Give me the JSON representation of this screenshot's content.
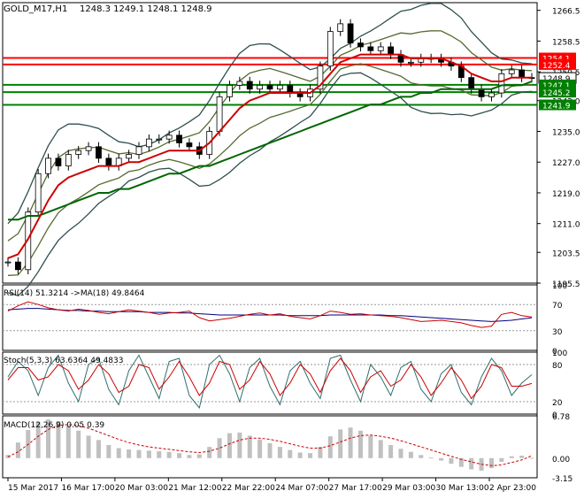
{
  "header": {
    "symbol_tf": "GOLD_M17,H1",
    "ohlc": "1248.3 1249.1 1248.1 1248.9"
  },
  "colors": {
    "background": "#ffffff",
    "frame": "#000000",
    "ma_fast": "#cc0000",
    "ma_slow": "#006600",
    "bands_outer": "#2f4f4f",
    "bands_inner": "#556b2f",
    "rsi": "#cc0000",
    "rsi_ma": "#000080",
    "stoch_main": "#2f6f6f",
    "stoch_signal": "#cc0000",
    "macd_hist": "#c0c0c0",
    "macd_signal": "#cc0000",
    "level_red": "#ff0000",
    "level_green": "#008000"
  },
  "chart_data": [
    {
      "type": "candlestick",
      "title": "GOLD_M17,H1",
      "ylim": [
        1195.5,
        1268.5
      ],
      "y_ticks": [
        "1266.5",
        "1258.5",
        "1250.5",
        "1243.0",
        "1235.0",
        "1227.0",
        "1219.0",
        "1211.0",
        "1203.5",
        "1195.5"
      ],
      "x_ticks": [
        "15 Mar 2017",
        "16 Mar 17:00",
        "20 Mar 03:00",
        "21 Mar 12:00",
        "22 Mar 22:00",
        "24 Mar 07:00",
        "27 Mar 17:00",
        "29 Mar 03:00",
        "30 Mar 13:00",
        "2 Apr 23:00"
      ],
      "price_labels": [
        {
          "value": 1254.1,
          "text": "1254.1",
          "color": "red"
        },
        {
          "value": 1252.4,
          "text": "1252.4",
          "color": "red"
        },
        {
          "value": 1248.9,
          "text": "1248.9",
          "color": "current"
        },
        {
          "value": 1247.1,
          "text": "1247.1",
          "color": "green"
        },
        {
          "value": 1245.2,
          "text": "1245.2",
          "color": "green"
        },
        {
          "value": 1241.9,
          "text": "1241.9",
          "color": "green"
        }
      ],
      "horizontal_levels": [
        {
          "value": 1254.1,
          "color": "red"
        },
        {
          "value": 1252.4,
          "color": "red"
        },
        {
          "value": 1247.1,
          "color": "green"
        },
        {
          "value": 1245.2,
          "color": "green"
        },
        {
          "value": 1241.9,
          "color": "green"
        }
      ],
      "close_path": [
        [
          0,
          1201
        ],
        [
          1,
          1199
        ],
        [
          2,
          1214
        ],
        [
          3,
          1224
        ],
        [
          4,
          1228
        ],
        [
          5,
          1226
        ],
        [
          6,
          1229
        ],
        [
          7,
          1230
        ],
        [
          8,
          1231
        ],
        [
          9,
          1228
        ],
        [
          10,
          1226
        ],
        [
          11,
          1228
        ],
        [
          12,
          1229
        ],
        [
          13,
          1231
        ],
        [
          14,
          1233
        ],
        [
          15,
          1233
        ],
        [
          16,
          1234
        ],
        [
          17,
          1232
        ],
        [
          18,
          1231
        ],
        [
          19,
          1229
        ],
        [
          20,
          1235
        ],
        [
          21,
          1244
        ],
        [
          22,
          1247
        ],
        [
          23,
          1248
        ],
        [
          24,
          1246
        ],
        [
          25,
          1247
        ],
        [
          26,
          1246
        ],
        [
          27,
          1247
        ],
        [
          28,
          1245
        ],
        [
          29,
          1244
        ],
        [
          30,
          1246
        ],
        [
          31,
          1252
        ],
        [
          32,
          1261
        ],
        [
          33,
          1263
        ],
        [
          34,
          1258
        ],
        [
          35,
          1257
        ],
        [
          36,
          1256
        ],
        [
          37,
          1257
        ],
        [
          38,
          1255
        ],
        [
          39,
          1253
        ],
        [
          40,
          1253
        ],
        [
          41,
          1254
        ],
        [
          42,
          1254
        ],
        [
          43,
          1253
        ],
        [
          44,
          1252
        ],
        [
          45,
          1249
        ],
        [
          46,
          1246
        ],
        [
          47,
          1244
        ],
        [
          48,
          1245
        ],
        [
          49,
          1250
        ],
        [
          50,
          1251
        ],
        [
          51,
          1249
        ],
        [
          52,
          1248.9
        ]
      ],
      "indicators": [
        {
          "name": "MA fast",
          "values": [
            1202,
            1203,
            1207,
            1212,
            1217,
            1221,
            1223,
            1224,
            1225,
            1226,
            1226,
            1226,
            1227,
            1227,
            1228,
            1229,
            1230,
            1230,
            1230,
            1230,
            1232,
            1235,
            1238,
            1241,
            1243,
            1244,
            1245,
            1245,
            1245,
            1245,
            1245,
            1247,
            1250,
            1253,
            1254,
            1255,
            1255,
            1255,
            1255,
            1255,
            1254,
            1254,
            1254,
            1254,
            1253,
            1252,
            1250,
            1249,
            1248,
            1248,
            1249,
            1249,
            1249
          ]
        },
        {
          "name": "MA slow",
          "values": [
            1212,
            1212,
            1213,
            1213,
            1214,
            1215,
            1216,
            1217,
            1218,
            1219,
            1219,
            1220,
            1220,
            1221,
            1222,
            1223,
            1224,
            1224,
            1225,
            1226,
            1226,
            1227,
            1228,
            1229,
            1230,
            1231,
            1232,
            1233,
            1234,
            1235,
            1236,
            1237,
            1238,
            1239,
            1240,
            1241,
            1242,
            1242,
            1243,
            1244,
            1244,
            1245,
            1245,
            1246,
            1246,
            1246,
            1246,
            1246,
            1246,
            1247,
            1247,
            1247,
            1248
          ]
        }
      ]
    },
    {
      "type": "line",
      "title": "RSI(14) 51.3214 ->MA(18) 49.8464",
      "ylim": [
        0,
        100
      ],
      "y_ticks": [
        "100",
        "70",
        "30",
        "0"
      ],
      "series": [
        {
          "name": "RSI(14)",
          "values": [
            60,
            68,
            74,
            70,
            65,
            62,
            60,
            63,
            61,
            58,
            56,
            59,
            62,
            60,
            58,
            55,
            57,
            58,
            60,
            50,
            45,
            47,
            49,
            52,
            55,
            57,
            54,
            56,
            52,
            50,
            48,
            53,
            60,
            58,
            55,
            56,
            54,
            53,
            52,
            50,
            47,
            44,
            45,
            46,
            44,
            42,
            38,
            35,
            37,
            55,
            58,
            53,
            51
          ]
        },
        {
          "name": "MA(18)",
          "values": [
            62,
            63,
            64,
            64,
            63,
            62,
            61,
            61,
            60,
            60,
            59,
            59,
            59,
            59,
            58,
            58,
            58,
            57,
            57,
            56,
            55,
            54,
            54,
            54,
            54,
            54,
            54,
            54,
            53,
            53,
            53,
            53,
            54,
            54,
            54,
            54,
            54,
            54,
            53,
            53,
            52,
            51,
            50,
            49,
            48,
            47,
            46,
            45,
            44,
            45,
            46,
            48,
            49.8
          ]
        }
      ]
    },
    {
      "type": "line",
      "title": "Stoch(5,3,3) 63.6364 49.4833",
      "ylim": [
        0,
        100
      ],
      "y_ticks": [
        "100",
        "80",
        "20",
        "0"
      ],
      "series": [
        {
          "name": "Main",
          "values": [
            60,
            85,
            70,
            30,
            75,
            95,
            50,
            20,
            80,
            90,
            40,
            15,
            70,
            95,
            60,
            25,
            85,
            90,
            30,
            10,
            80,
            95,
            65,
            20,
            75,
            90,
            45,
            15,
            70,
            85,
            50,
            25,
            90,
            95,
            55,
            20,
            80,
            60,
            30,
            75,
            85,
            40,
            20,
            65,
            80,
            35,
            15,
            60,
            90,
            70,
            30,
            50,
            63.6
          ]
        },
        {
          "name": "Signal",
          "values": [
            55,
            75,
            75,
            55,
            60,
            80,
            70,
            40,
            55,
            80,
            65,
            35,
            45,
            80,
            75,
            40,
            60,
            85,
            60,
            30,
            50,
            85,
            80,
            40,
            55,
            85,
            65,
            30,
            50,
            80,
            65,
            35,
            70,
            90,
            70,
            35,
            60,
            70,
            45,
            55,
            80,
            60,
            30,
            50,
            75,
            55,
            25,
            45,
            80,
            75,
            45,
            45,
            49.5
          ]
        }
      ]
    },
    {
      "type": "bar",
      "title": "MACD(12,26,9) 0.05 0.39",
      "ylim": [
        -3.15,
        6.78
      ],
      "y_ticks": [
        "6.78",
        "0.00",
        "-3.15"
      ],
      "series": [
        {
          "name": "MACD",
          "values": [
            0.5,
            2.5,
            4.5,
            5.8,
            6.2,
            5.9,
            5.2,
            4.4,
            3.6,
            2.9,
            2.1,
            1.6,
            1.4,
            1.3,
            1.2,
            1.1,
            1.0,
            0.8,
            0.5,
            0.6,
            1.8,
            3.2,
            4.0,
            4.1,
            3.6,
            3.0,
            2.4,
            1.8,
            1.3,
            0.9,
            0.8,
            1.8,
            3.5,
            4.6,
            4.9,
            4.4,
            3.6,
            2.9,
            2.1,
            1.5,
            1.0,
            0.5,
            0.1,
            -0.4,
            -0.9,
            -1.4,
            -1.8,
            -2.0,
            -1.6,
            -0.6,
            0.3,
            0.4,
            0.05
          ]
        },
        {
          "name": "Signal",
          "values": [
            0.2,
            1.0,
            2.2,
            3.5,
            4.6,
            5.2,
            5.4,
            5.2,
            4.8,
            4.2,
            3.6,
            3.0,
            2.5,
            2.1,
            1.8,
            1.6,
            1.4,
            1.2,
            1.0,
            0.9,
            1.1,
            1.6,
            2.3,
            2.9,
            3.2,
            3.2,
            3.0,
            2.7,
            2.3,
            1.9,
            1.6,
            1.6,
            2.0,
            2.6,
            3.2,
            3.6,
            3.7,
            3.5,
            3.2,
            2.8,
            2.3,
            1.8,
            1.3,
            0.8,
            0.3,
            -0.2,
            -0.6,
            -1.0,
            -1.2,
            -1.1,
            -0.7,
            -0.3,
            0.39
          ]
        }
      ]
    }
  ]
}
